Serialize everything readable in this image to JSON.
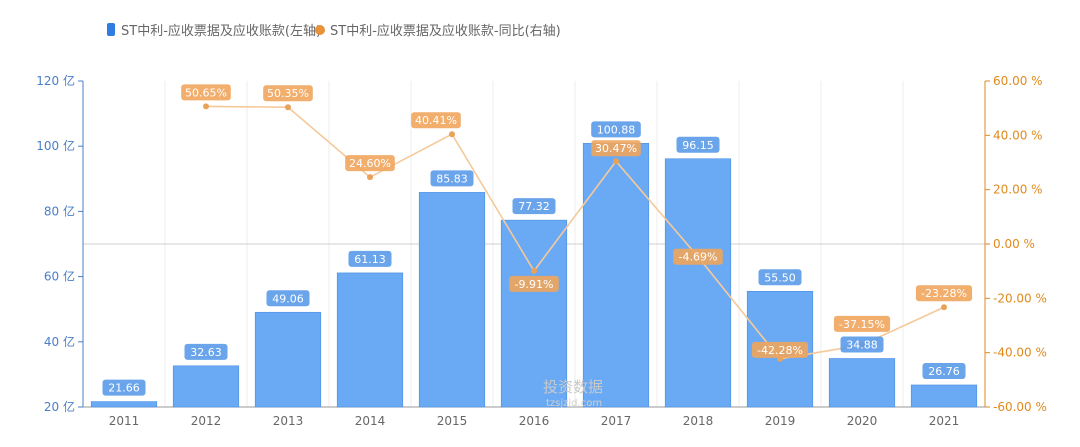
{
  "legend": {
    "series_bar": "ST中利-应收票据及应收账款(左轴)",
    "series_line": "ST中利-应收票据及应收账款-同比(右轴)"
  },
  "watermark": {
    "main": "投资数据",
    "sub": "tzsjzid.com"
  },
  "colors": {
    "bar": "#6aaaf5",
    "bar_stroke": "#4a8fe0",
    "line": "#f5c99a",
    "point": "#e8a25a",
    "left_axis": "#4a7ec8",
    "right_axis": "#e08a1e",
    "bar_label_bg": "#5a9ae8",
    "pt_label_bg": "#f0a55c"
  },
  "chart_data": {
    "type": "bar+line",
    "categories": [
      "2011",
      "2012",
      "2013",
      "2014",
      "2015",
      "2016",
      "2017",
      "2018",
      "2019",
      "2020",
      "2021"
    ],
    "series": [
      {
        "name": "ST中利-应收票据及应收账款(左轴)",
        "type": "bar",
        "axis": "left",
        "values": [
          21.66,
          32.63,
          49.06,
          61.13,
          85.83,
          77.32,
          100.88,
          96.15,
          55.5,
          34.88,
          26.76
        ],
        "labels": [
          "21.66",
          "32.63",
          "49.06",
          "61.13",
          "85.83",
          "77.32",
          "100.88",
          "96.15",
          "55.50",
          "34.88",
          "26.76"
        ]
      },
      {
        "name": "ST中利-应收票据及应收账款-同比(右轴)",
        "type": "line",
        "axis": "right",
        "values": [
          null,
          50.65,
          50.35,
          24.6,
          40.41,
          -9.91,
          30.47,
          -4.69,
          -42.28,
          -37.15,
          -23.28
        ],
        "labels": [
          null,
          "50.65%",
          "50.35%",
          "24.60%",
          "40.41%",
          "-9.91%",
          "30.47%",
          "-4.69%",
          "-42.28%",
          "-37.15%",
          "-23.28%"
        ]
      }
    ],
    "left_axis": {
      "ylim": [
        20,
        120
      ],
      "ticks": [
        20,
        40,
        60,
        80,
        100,
        120
      ],
      "tick_labels": [
        "20 亿",
        "40 亿",
        "60 亿",
        "80 亿",
        "100 亿",
        "120 亿"
      ]
    },
    "right_axis": {
      "ylim": [
        -60,
        60
      ],
      "ticks": [
        -60,
        -40,
        -20,
        0,
        20,
        40,
        60
      ],
      "tick_labels": [
        "-60.00 %",
        "-40.00 %",
        "-20.00 %",
        "0.00 %",
        "20.00 %",
        "40.00 %",
        "60.00 %"
      ]
    },
    "grid": true,
    "legend_position": "top-left"
  }
}
